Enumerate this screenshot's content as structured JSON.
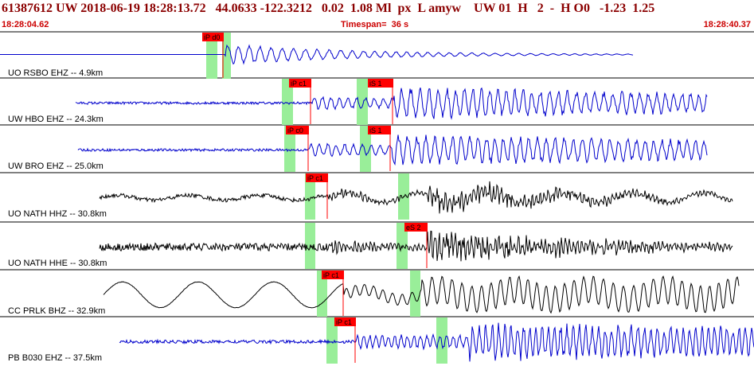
{
  "header": {
    "event_line": "61387612 UW 2018-06-19 18:28:13.72   44.0633 -122.3212   0.02  1.08 Ml  px  L amyw    UW 01  H   2  -  H O0   -1.23  1.25",
    "start_time": "18:28:04.62",
    "timespan": "Timespan=  36 s",
    "end_time": "18:28:40.37"
  },
  "colors": {
    "blue_trace": "#0000cc",
    "black_trace": "#000000",
    "pick": "#ff0000",
    "window": "#99ee99"
  },
  "channels": [
    {
      "label": "UO RSBO EHZ -- 4.9km",
      "color": "blue",
      "picks": [
        {
          "label": "iP d0"
        }
      ]
    },
    {
      "label": "UW HBO EHZ -- 24.3km",
      "color": "blue",
      "picks": [
        {
          "label": "iP c1"
        },
        {
          "label": "iS 1"
        }
      ]
    },
    {
      "label": "UW BRO EHZ -- 25.0km",
      "color": "blue",
      "picks": [
        {
          "label": "iP c0"
        },
        {
          "label": "iS 1"
        }
      ]
    },
    {
      "label": "UO NATH HHZ -- 30.8km",
      "color": "black",
      "picks": [
        {
          "label": "iP c1"
        }
      ]
    },
    {
      "label": "UO NATH HHE -- 30.8km",
      "color": "black",
      "picks": [
        {
          "label": "eS 2"
        }
      ]
    },
    {
      "label": "CC PRLK BHZ -- 32.9km",
      "color": "black",
      "picks": [
        {
          "label": "iP c1"
        }
      ]
    },
    {
      "label": "PB B030 EHZ -- 37.5km",
      "color": "blue",
      "picks": [
        {
          "label": "iP c1"
        }
      ]
    }
  ]
}
